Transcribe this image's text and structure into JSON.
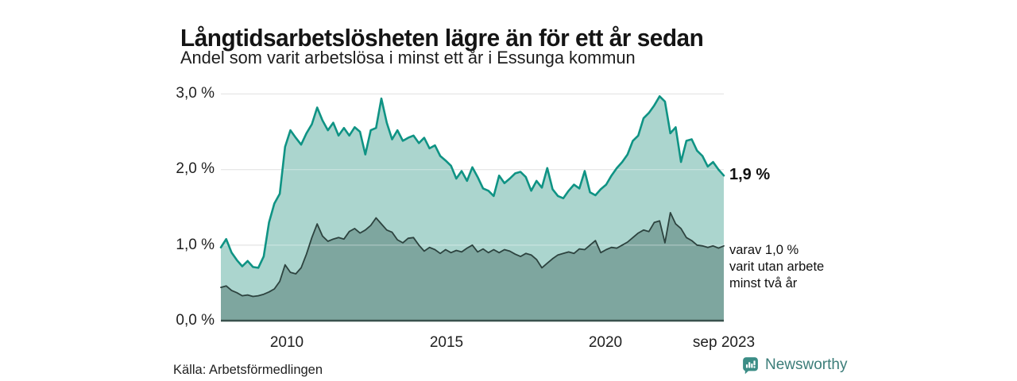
{
  "header": {
    "title": "Långtidsarbetslösheten lägre än för ett år sedan",
    "subtitle": "Andel som varit arbetslösa i minst ett år i Essunga kommun"
  },
  "chart_data": {
    "type": "area",
    "title": "Långtidsarbetslösheten lägre än för ett år sedan",
    "subtitle": "Andel som varit arbetslösa i minst ett år i Essunga kommun",
    "unit": "%",
    "x_axis": {
      "start": 2008.0,
      "end": 2023.67,
      "step_months": 2,
      "tick_labels": [
        "2010",
        "2015",
        "2020",
        "sep 2023"
      ]
    },
    "y_axis": {
      "min": 0.0,
      "max": 3.0,
      "tick_labels": [
        "3,0 %",
        "2,0 %",
        "1,0 %",
        "0,0 %"
      ],
      "grid": true
    },
    "legend_position": "end-of-line annotations",
    "series": [
      {
        "name": "Andel som varit arbetslösa i minst ett år",
        "end_value_label": "1,9 %",
        "end_value": 1.9,
        "color": "#0f9384",
        "fill": "#abd5ce",
        "values": [
          0.97,
          1.08,
          0.9,
          0.8,
          0.72,
          0.79,
          0.71,
          0.7,
          0.85,
          1.3,
          1.55,
          1.68,
          2.3,
          2.52,
          2.42,
          2.33,
          2.48,
          2.6,
          2.82,
          2.65,
          2.52,
          2.62,
          2.45,
          2.55,
          2.45,
          2.56,
          2.5,
          2.2,
          2.52,
          2.55,
          2.94,
          2.62,
          2.4,
          2.52,
          2.38,
          2.42,
          2.45,
          2.35,
          2.42,
          2.28,
          2.32,
          2.18,
          2.12,
          2.05,
          1.88,
          1.98,
          1.85,
          2.03,
          1.9,
          1.75,
          1.72,
          1.65,
          1.92,
          1.82,
          1.88,
          1.95,
          1.97,
          1.9,
          1.72,
          1.85,
          1.76,
          2.02,
          1.74,
          1.65,
          1.62,
          1.72,
          1.8,
          1.75,
          1.98,
          1.7,
          1.66,
          1.74,
          1.8,
          1.92,
          2.02,
          2.1,
          2.2,
          2.38,
          2.45,
          2.68,
          2.75,
          2.85,
          2.97,
          2.9,
          2.48,
          2.56,
          2.1,
          2.38,
          2.4,
          2.25,
          2.18,
          2.04,
          2.1,
          2.0,
          1.92
        ]
      },
      {
        "name": "varav utan arbete minst två år",
        "end_value_label": "varav 1,0 % varit utan arbete minst två år",
        "end_value": 1.0,
        "color": "#2d433f",
        "fill": "#7ea69f",
        "values": [
          0.44,
          0.46,
          0.4,
          0.37,
          0.33,
          0.34,
          0.32,
          0.33,
          0.35,
          0.38,
          0.42,
          0.52,
          0.74,
          0.64,
          0.62,
          0.7,
          0.88,
          1.1,
          1.28,
          1.12,
          1.05,
          1.08,
          1.1,
          1.08,
          1.18,
          1.22,
          1.16,
          1.2,
          1.26,
          1.36,
          1.28,
          1.2,
          1.17,
          1.07,
          1.03,
          1.09,
          1.1,
          1.0,
          0.92,
          0.97,
          0.94,
          0.89,
          0.94,
          0.9,
          0.93,
          0.91,
          0.96,
          1.0,
          0.91,
          0.95,
          0.9,
          0.94,
          0.9,
          0.94,
          0.92,
          0.88,
          0.85,
          0.89,
          0.87,
          0.81,
          0.7,
          0.76,
          0.82,
          0.87,
          0.89,
          0.91,
          0.89,
          0.95,
          0.94,
          1.0,
          1.06,
          0.9,
          0.94,
          0.97,
          0.96,
          1.0,
          1.04,
          1.1,
          1.16,
          1.2,
          1.18,
          1.3,
          1.32,
          1.03,
          1.43,
          1.28,
          1.22,
          1.1,
          1.06,
          1.0,
          0.99,
          0.97,
          0.99,
          0.96,
          0.99
        ]
      }
    ],
    "axis_line_color": "#3a524e",
    "gridline_color": "#dcdcdc"
  },
  "annotations": {
    "upper_end": "1,9 %",
    "lower_end_line1": "varav 1,0 %",
    "lower_end_line2": "varit utan arbete",
    "lower_end_line3": "minst två år"
  },
  "footer": {
    "source": "Källa: Arbetsförmedlingen",
    "brand": "Newsworthy",
    "brand_text_color": "#3c7d79",
    "brand_icon_color": "#3b8d86"
  }
}
